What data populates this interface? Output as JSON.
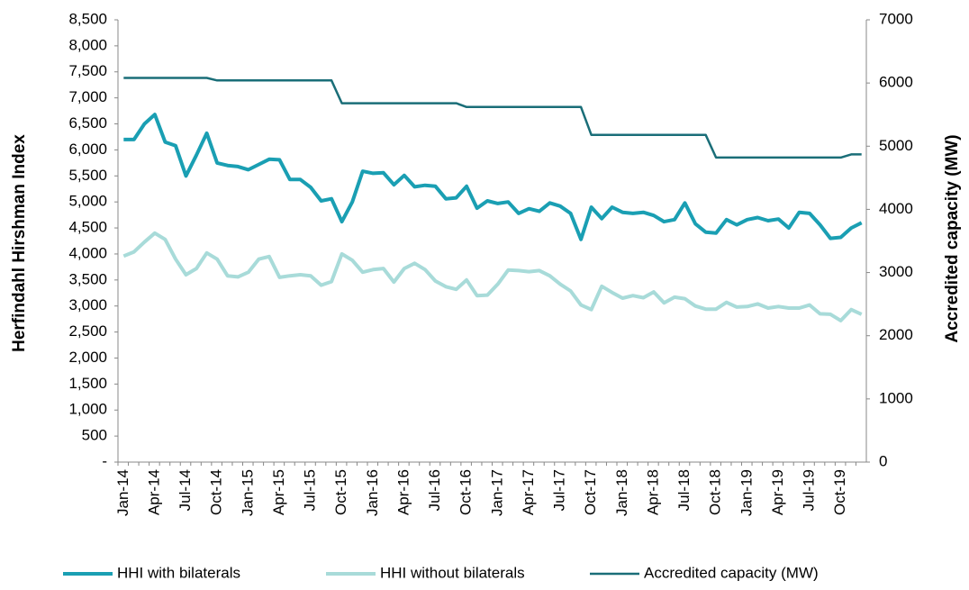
{
  "chart_data": {
    "type": "line",
    "y_label": "Herfindahl Hirshman Index",
    "y2_label": "Accredited capacity (MW)",
    "categories": [
      "Jan-14",
      null,
      null,
      "Apr-14",
      null,
      null,
      "Jul-14",
      null,
      null,
      "Oct-14",
      null,
      null,
      "Jan-15",
      null,
      null,
      "Apr-15",
      null,
      null,
      "Jul-15",
      null,
      null,
      "Oct-15",
      null,
      null,
      "Jan-16",
      null,
      null,
      "Apr-16",
      null,
      null,
      "Jul-16",
      null,
      null,
      "Oct-16",
      null,
      null,
      "Jan-17",
      null,
      null,
      "Apr-17",
      null,
      null,
      "Jul-17",
      null,
      null,
      "Oct-17",
      null,
      null,
      "Jan-18",
      null,
      null,
      "Apr-18",
      null,
      null,
      "Jul-18",
      null,
      null,
      "Oct-18",
      null,
      null,
      "Jan-19",
      null,
      null,
      "Apr-19",
      null,
      null,
      "Jul-19",
      null,
      null,
      "Oct-19",
      null,
      null
    ],
    "series": [
      {
        "name": "HHI with bilaterals",
        "color": "#1a9fb3",
        "width": 4,
        "values": [
          6200,
          6200,
          6500,
          6680,
          6150,
          6080,
          5500,
          5900,
          6320,
          5750,
          5700,
          5680,
          5620,
          5720,
          5820,
          5810,
          5430,
          5430,
          5280,
          5020,
          5060,
          4620,
          5000,
          5590,
          5550,
          5560,
          5330,
          5510,
          5290,
          5320,
          5300,
          5060,
          5080,
          5300,
          4880,
          5020,
          4970,
          5000,
          4780,
          4870,
          4820,
          4980,
          4920,
          4780,
          4280,
          4900,
          4680,
          4900,
          4800,
          4780,
          4800,
          4740,
          4620,
          4660,
          4980,
          4580,
          4420,
          4400,
          4660,
          4560,
          4660,
          4700,
          4640,
          4670,
          4500,
          4800,
          4780,
          4560,
          4300,
          4320,
          4500,
          4600
        ]
      },
      {
        "name": "HHI without bilaterals",
        "color": "#a8dbd9",
        "width": 4,
        "values": [
          3960,
          4040,
          4230,
          4400,
          4280,
          3900,
          3600,
          3720,
          4020,
          3900,
          3580,
          3560,
          3650,
          3900,
          3950,
          3550,
          3580,
          3600,
          3580,
          3400,
          3470,
          4000,
          3880,
          3650,
          3700,
          3720,
          3460,
          3720,
          3820,
          3700,
          3480,
          3370,
          3320,
          3500,
          3200,
          3210,
          3420,
          3690,
          3680,
          3660,
          3680,
          3580,
          3420,
          3290,
          3020,
          2930,
          3380,
          3260,
          3150,
          3200,
          3160,
          3270,
          3060,
          3170,
          3140,
          3000,
          2940,
          2940,
          3070,
          2980,
          2990,
          3040,
          2960,
          2990,
          2960,
          2960,
          3020,
          2850,
          2840,
          2720,
          2930,
          2840
        ]
      },
      {
        "name": "Accredited capacity (MW)",
        "color": "#1a6e78",
        "width": 2.5,
        "axis": "y2",
        "values": [
          6080,
          6080,
          6080,
          6080,
          6080,
          6080,
          6080,
          6080,
          6080,
          6040,
          6040,
          6040,
          6040,
          6040,
          6040,
          6040,
          6040,
          6040,
          6040,
          6040,
          6040,
          5680,
          5680,
          5680,
          5680,
          5680,
          5680,
          5680,
          5680,
          5680,
          5680,
          5680,
          5680,
          5620,
          5620,
          5620,
          5620,
          5620,
          5620,
          5620,
          5620,
          5620,
          5620,
          5620,
          5620,
          5180,
          5180,
          5180,
          5180,
          5180,
          5180,
          5180,
          5180,
          5180,
          5180,
          5180,
          5180,
          4820,
          4820,
          4820,
          4820,
          4820,
          4820,
          4820,
          4820,
          4820,
          4820,
          4820,
          4820,
          4820,
          4870,
          4870
        ]
      }
    ],
    "ylim": [
      0,
      8500
    ],
    "yticks": [
      {
        "value": 0,
        "label": "-"
      },
      500,
      {
        "value": 1000,
        "label": "1,000"
      },
      {
        "value": 1500,
        "label": "1,500"
      },
      {
        "value": 2000,
        "label": "2,000"
      },
      {
        "value": 2500,
        "label": "2,500"
      },
      {
        "value": 3000,
        "label": "3,000"
      },
      {
        "value": 3500,
        "label": "3,500"
      },
      {
        "value": 4000,
        "label": "4,000"
      },
      {
        "value": 4500,
        "label": "4,500"
      },
      {
        "value": 5000,
        "label": "5,000"
      },
      {
        "value": 5500,
        "label": "5,500"
      },
      {
        "value": 6000,
        "label": "6,000"
      },
      {
        "value": 6500,
        "label": "6,500"
      },
      {
        "value": 7000,
        "label": "7,000"
      },
      {
        "value": 7500,
        "label": "7,500"
      },
      {
        "value": 8000,
        "label": "8,000"
      },
      {
        "value": 8500,
        "label": "8,500"
      }
    ],
    "y2lim": [
      0,
      7000
    ],
    "y2ticks": [
      0,
      1000,
      2000,
      3000,
      4000,
      5000,
      6000,
      7000
    ],
    "grid": false
  }
}
